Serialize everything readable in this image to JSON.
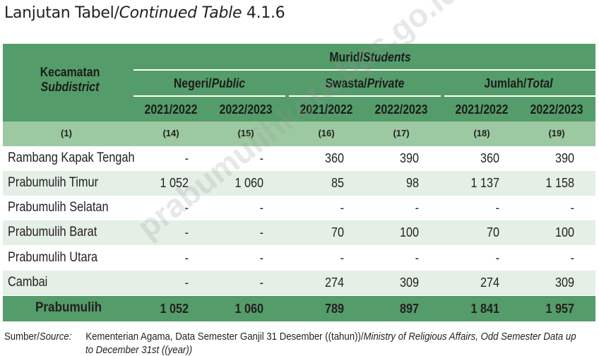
{
  "title": {
    "normal": "Lanjutan Tabel/",
    "italic": "Continued Table",
    "number": " 4.1.6"
  },
  "header": {
    "group_label": "Murid/",
    "group_label_en": "Students",
    "subdistrict": "Kecamatan",
    "subdistrict_en": "Subdistrict",
    "negeri": "Negeri/",
    "negeri_en": "Public",
    "swasta": "Swasta/",
    "swasta_en": "Private",
    "jumlah": "Jumlah/",
    "jumlah_en": "Total",
    "years": [
      "2021/2022",
      "2022/2023",
      "2021/2022",
      "2022/2023",
      "2021/2022",
      "2022/2023"
    ],
    "col_numbers": [
      "(1)",
      "(14)",
      "(15)",
      "(16)",
      "(17)",
      "(18)",
      "(19)"
    ]
  },
  "rows": [
    {
      "name": "Rambang Kapak Tengah",
      "values": [
        "-",
        "-",
        "360",
        "390",
        "360",
        "390"
      ]
    },
    {
      "name": "Prabumulih Timur",
      "values": [
        "1 052",
        "1 060",
        "85",
        "98",
        "1 137",
        "1 158"
      ]
    },
    {
      "name": "Prabumulih Selatan",
      "values": [
        "-",
        "-",
        "-",
        "-",
        "-",
        "-"
      ]
    },
    {
      "name": "Prabumulih Barat",
      "values": [
        "-",
        "-",
        "70",
        "100",
        "70",
        "100"
      ]
    },
    {
      "name": "Prabumulih Utara",
      "values": [
        "-",
        "-",
        "-",
        "-",
        "-",
        "-"
      ]
    },
    {
      "name": "Cambai",
      "values": [
        "-",
        "-",
        "274",
        "309",
        "274",
        "309"
      ]
    }
  ],
  "total": {
    "name": "Prabumulih",
    "values": [
      "1 052",
      "1 060",
      "789",
      "897",
      "1 841",
      "1 957"
    ]
  },
  "source": {
    "label": "Sumber/",
    "label_en": "Source:",
    "text": "Kementerian Agama, Data Semester Ganjil 31 Desember ((tahun))/",
    "text_en": "Ministry of Religious Affairs, Odd Semester Data up",
    "text_en2": "to December 31st ((year))"
  },
  "watermark": "prabumulihkota.bps.go.id"
}
